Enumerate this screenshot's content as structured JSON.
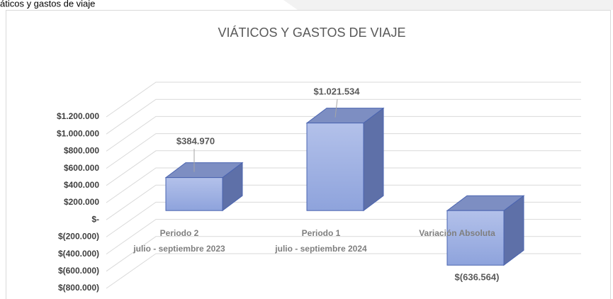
{
  "header": {
    "title": "áticos y gastos de viaje"
  },
  "chart_data": {
    "type": "bar3d",
    "title": "VIÁTICOS  Y  GASTOS  DE  VIAJE",
    "categories": [
      [
        "Periodo 2",
        "julio - septiembre  2023"
      ],
      [
        "Periodo 1",
        "julio - septiembre  2024"
      ],
      [
        "Variación Absoluta"
      ]
    ],
    "values": [
      384970,
      1021534,
      -636564
    ],
    "value_labels": [
      "$384.970",
      "$1.021.534",
      "$(636.564)"
    ],
    "color": "#99ade2",
    "ylim": [
      -800000,
      1200000
    ],
    "yticks": [
      {
        "value": 1200000,
        "label": "$1.200.000"
      },
      {
        "value": 1000000,
        "label": "$1.000.000"
      },
      {
        "value": 800000,
        "label": "$800.000"
      },
      {
        "value": 600000,
        "label": "$600.000"
      },
      {
        "value": 400000,
        "label": "$400.000"
      },
      {
        "value": 200000,
        "label": "$200.000"
      },
      {
        "value": 0,
        "label": "$-"
      },
      {
        "value": -200000,
        "label": "$(200.000)"
      },
      {
        "value": -400000,
        "label": "$(400.000)"
      },
      {
        "value": -600000,
        "label": "$(600.000)"
      },
      {
        "value": -800000,
        "label": "$(800.000)"
      }
    ],
    "grid": true
  }
}
